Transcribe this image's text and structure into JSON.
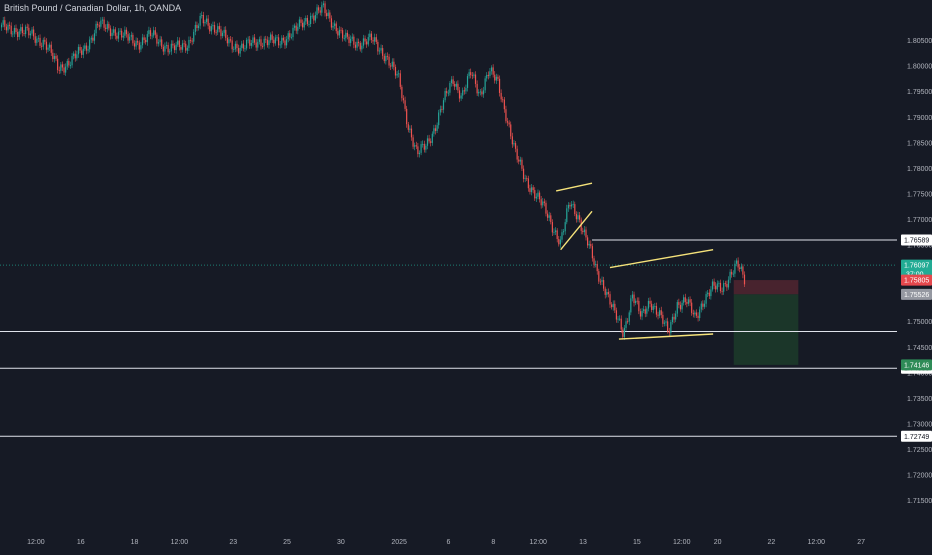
{
  "header": {
    "symbol_title": "British Pound / Canadian Dollar, 1h, OANDA"
  },
  "colors": {
    "background": "#161a25",
    "up": "#26a69a",
    "down": "#ef5350",
    "axis_text": "#b2b5be",
    "trendline": "#f5e27a",
    "level_line": "#e0e3eb",
    "current_price": "#22ab94",
    "stop_zone": "#4e2530",
    "target_zone": "#1c3a2a"
  },
  "chart_data": {
    "type": "candlestick",
    "title": "British Pound / Canadian Dollar, 1h, OANDA",
    "ylim": [
      1.7115,
      1.8105
    ],
    "y_ticks": [
      "1.80500",
      "1.80000",
      "1.79500",
      "1.79000",
      "1.78500",
      "1.78000",
      "1.77500",
      "1.77000",
      "1.76500",
      "1.76000",
      "1.75500",
      "1.75000",
      "1.74500",
      "1.74000",
      "1.73500",
      "1.73000",
      "1.72500",
      "1.72000",
      "1.71500"
    ],
    "x_ticks": [
      {
        "label": "12:00",
        "pos": 0.04
      },
      {
        "label": "16",
        "pos": 0.09
      },
      {
        "label": "18",
        "pos": 0.15
      },
      {
        "label": "12:00",
        "pos": 0.2
      },
      {
        "label": "23",
        "pos": 0.26
      },
      {
        "label": "25",
        "pos": 0.32
      },
      {
        "label": "30",
        "pos": 0.38
      },
      {
        "label": "2025",
        "pos": 0.445
      },
      {
        "label": "6",
        "pos": 0.5
      },
      {
        "label": "8",
        "pos": 0.55
      },
      {
        "label": "12:00",
        "pos": 0.6
      },
      {
        "label": "13",
        "pos": 0.65
      },
      {
        "label": "15",
        "pos": 0.71
      },
      {
        "label": "12:00",
        "pos": 0.76
      },
      {
        "label": "20",
        "pos": 0.8
      },
      {
        "label": "22",
        "pos": 0.86
      },
      {
        "label": "12:00",
        "pos": 0.91
      },
      {
        "label": "27",
        "pos": 0.96
      }
    ],
    "price_path": [
      [
        0,
        1.8075
      ],
      [
        0.02,
        1.807
      ],
      [
        0.035,
        1.806
      ],
      [
        0.05,
        1.8045
      ],
      [
        0.065,
        1.7995
      ],
      [
        0.08,
        1.801
      ],
      [
        0.095,
        1.8035
      ],
      [
        0.11,
        1.808
      ],
      [
        0.125,
        1.807
      ],
      [
        0.14,
        1.8055
      ],
      [
        0.155,
        1.8045
      ],
      [
        0.17,
        1.806
      ],
      [
        0.19,
        1.803
      ],
      [
        0.21,
        1.8045
      ],
      [
        0.225,
        1.809
      ],
      [
        0.24,
        1.8075
      ],
      [
        0.255,
        1.8045
      ],
      [
        0.27,
        1.8035
      ],
      [
        0.29,
        1.805
      ],
      [
        0.31,
        1.8045
      ],
      [
        0.33,
        1.807
      ],
      [
        0.345,
        1.8095
      ],
      [
        0.36,
        1.811
      ],
      [
        0.375,
        1.8075
      ],
      [
        0.385,
        1.805
      ],
      [
        0.4,
        1.8045
      ],
      [
        0.415,
        1.805
      ],
      [
        0.43,
        1.802
      ],
      [
        0.445,
        1.797
      ],
      [
        0.455,
        1.7885
      ],
      [
        0.465,
        1.7825
      ],
      [
        0.475,
        1.7845
      ],
      [
        0.485,
        1.788
      ],
      [
        0.495,
        1.793
      ],
      [
        0.505,
        1.7975
      ],
      [
        0.515,
        1.794
      ],
      [
        0.525,
        1.7985
      ],
      [
        0.535,
        1.7945
      ],
      [
        0.545,
        1.799
      ],
      [
        0.555,
        1.7965
      ],
      [
        0.565,
        1.79
      ],
      [
        0.575,
        1.7825
      ],
      [
        0.585,
        1.778
      ],
      [
        0.595,
        1.7755
      ],
      [
        0.605,
        1.7725
      ],
      [
        0.615,
        1.769
      ],
      [
        0.625,
        1.7655
      ],
      [
        0.635,
        1.773
      ],
      [
        0.645,
        1.7705
      ],
      [
        0.655,
        1.7655
      ],
      [
        0.665,
        1.7595
      ],
      [
        0.675,
        1.7565
      ],
      [
        0.685,
        1.7515
      ],
      [
        0.695,
        1.7475
      ],
      [
        0.705,
        1.7555
      ],
      [
        0.715,
        1.7505
      ],
      [
        0.725,
        1.754
      ],
      [
        0.735,
        1.7515
      ],
      [
        0.745,
        1.7475
      ],
      [
        0.755,
        1.7535
      ],
      [
        0.765,
        1.754
      ],
      [
        0.775,
        1.7505
      ],
      [
        0.785,
        1.7545
      ],
      [
        0.795,
        1.7565
      ],
      [
        0.805,
        1.7565
      ],
      [
        0.815,
        1.7595
      ],
      [
        0.822,
        1.761
      ],
      [
        0.83,
        1.758
      ]
    ],
    "horizontal_levels": [
      {
        "value": 1.76589,
        "label": "1.76589",
        "x_start": 0.66
      },
      {
        "value": 1.748,
        "label": "",
        "x_start": 0
      },
      {
        "value": 1.7408,
        "label": "1.74080",
        "x_start": 0
      },
      {
        "value": 1.72749,
        "label": "1.72749",
        "x_start": 0
      }
    ],
    "trendlines": [
      {
        "points": [
          [
            0.62,
            1.7755
          ],
          [
            0.66,
            1.777
          ]
        ]
      },
      {
        "points": [
          [
            0.625,
            1.764
          ],
          [
            0.66,
            1.7715
          ]
        ]
      },
      {
        "points": [
          [
            0.68,
            1.7605
          ],
          [
            0.795,
            1.764
          ]
        ]
      },
      {
        "points": [
          [
            0.69,
            1.7465
          ],
          [
            0.795,
            1.7475
          ]
        ]
      }
    ],
    "current_price": {
      "value": 1.76097,
      "label": "1.76097",
      "countdown": "37:00"
    },
    "position": {
      "entry": {
        "value": 1.75526,
        "label": "1.75526"
      },
      "stop": {
        "value": 1.75805,
        "label": "1.75805"
      },
      "target": {
        "value": 1.74146,
        "label": "1.74146"
      },
      "x_start": 0.818,
      "x_end": 0.89
    },
    "grid": false
  }
}
